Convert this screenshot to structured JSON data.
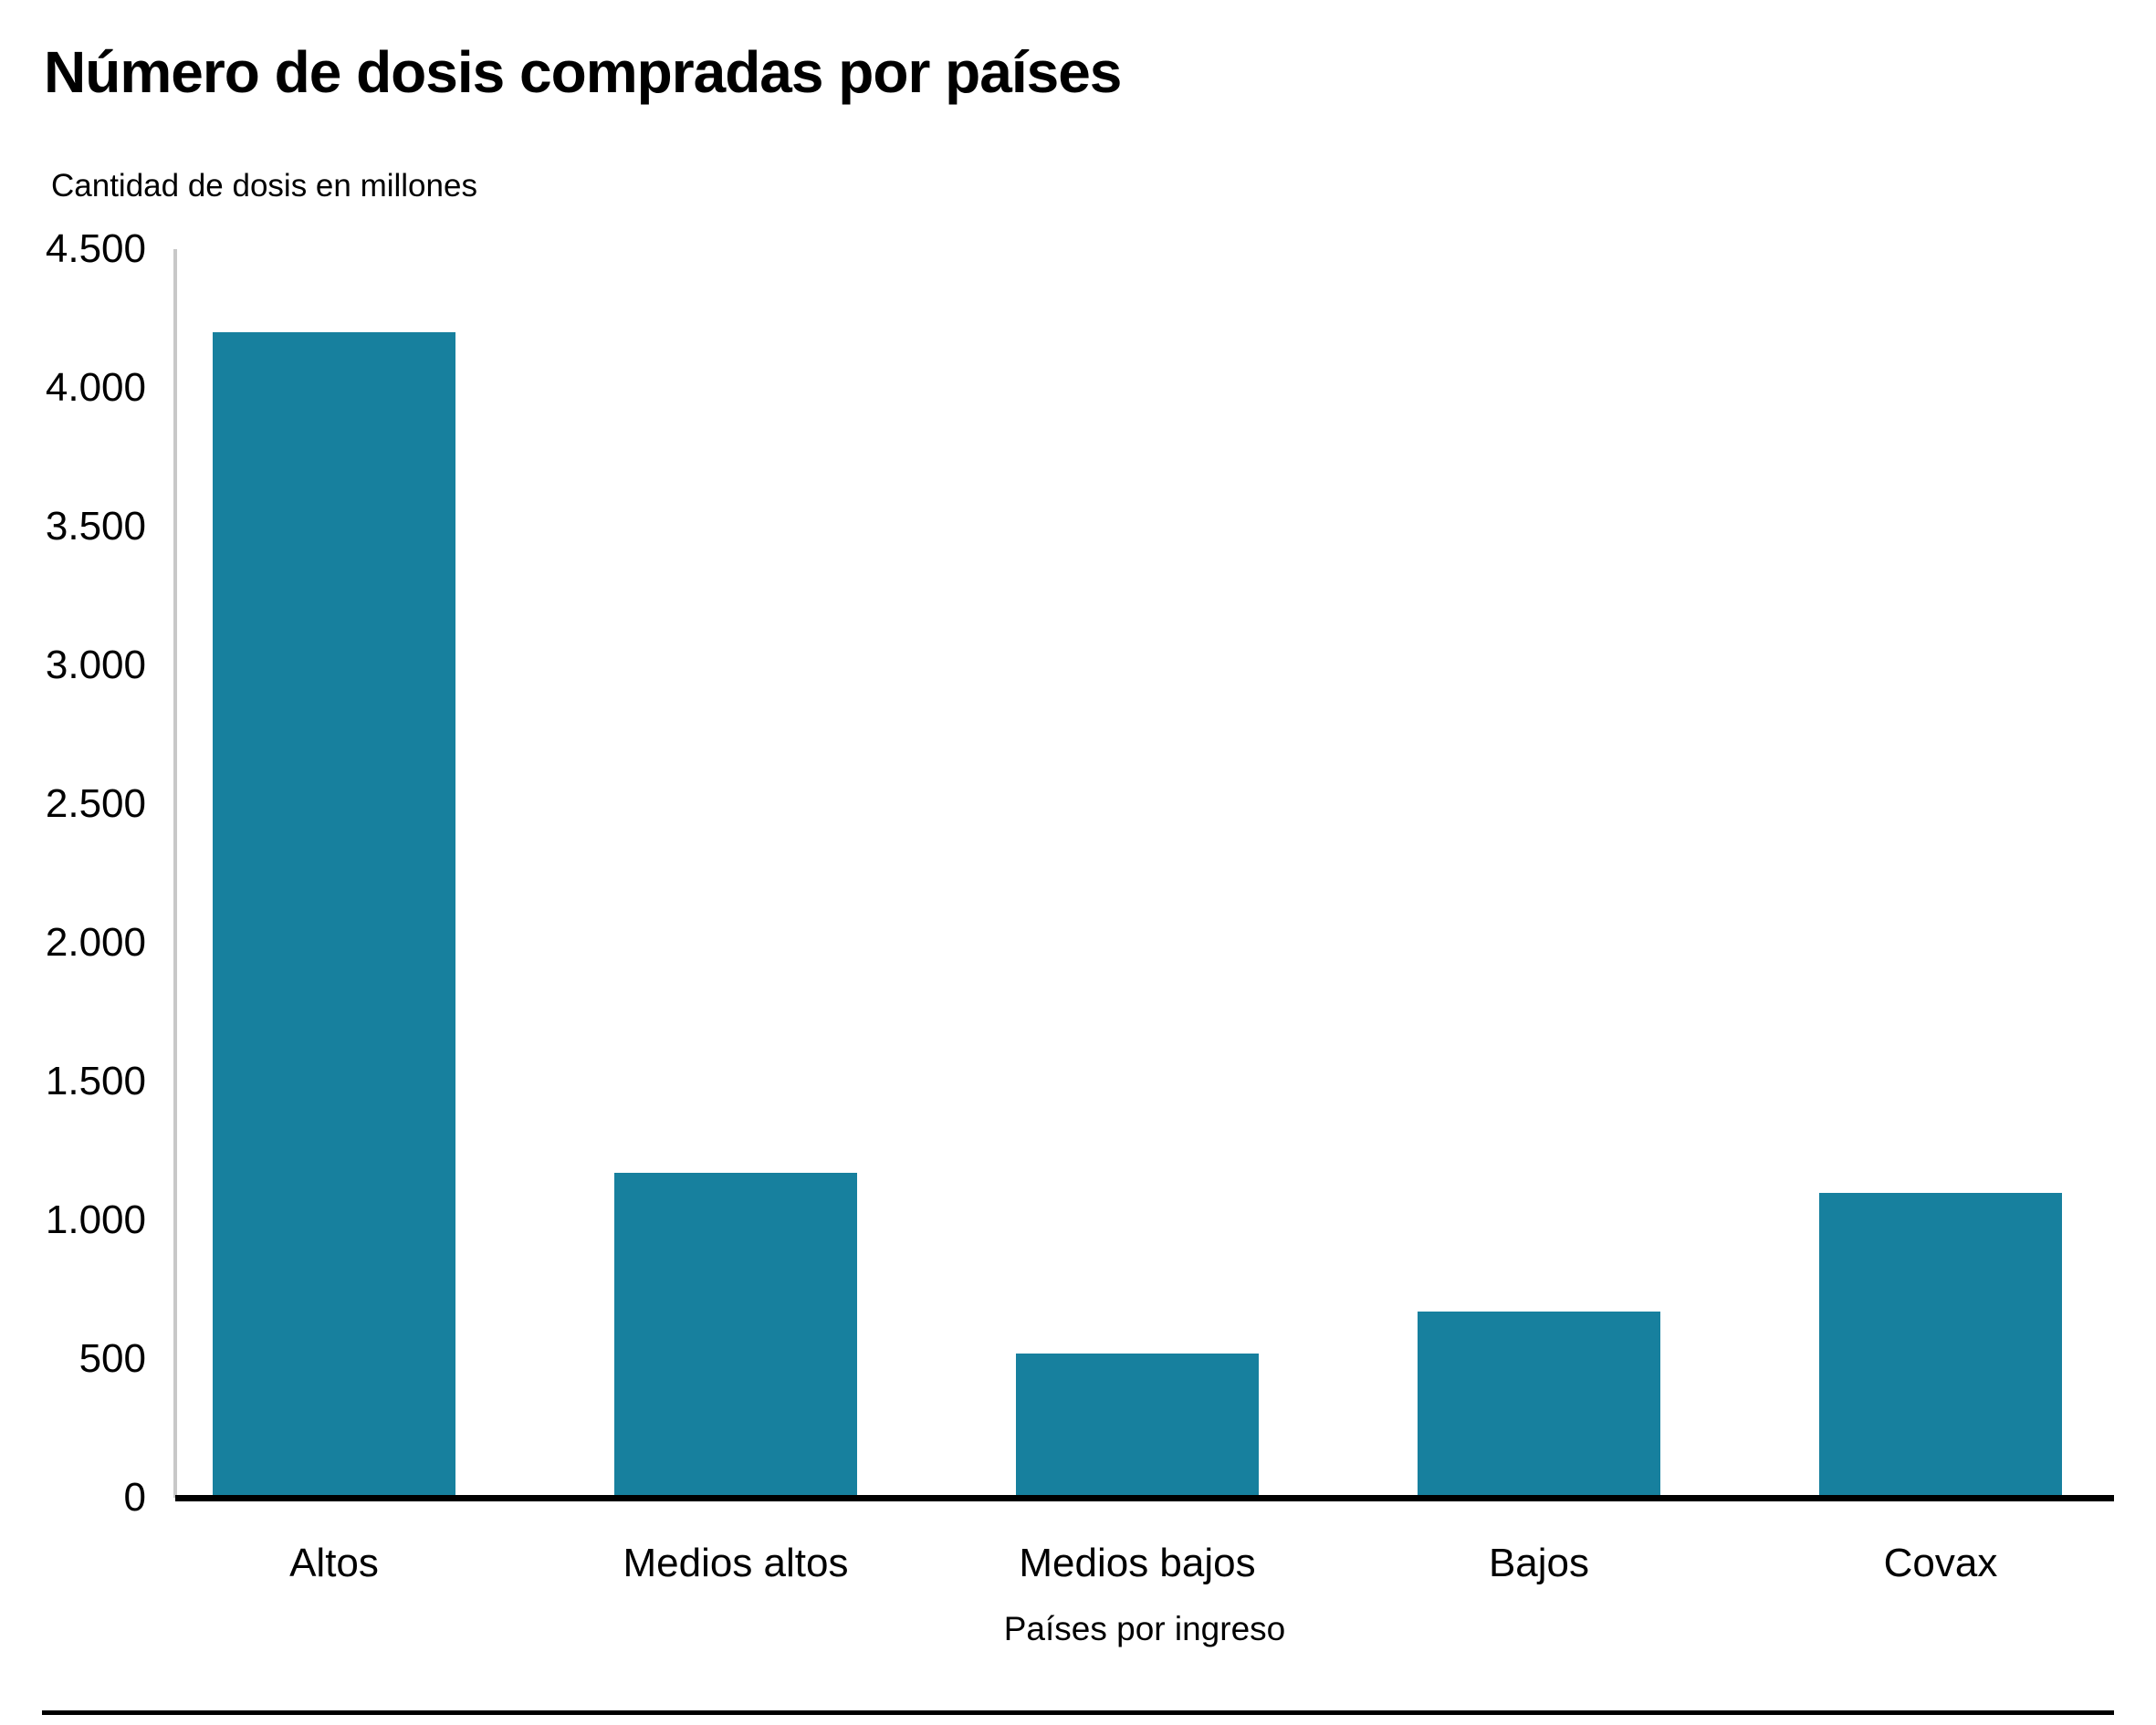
{
  "page": {
    "background": "#ffffff"
  },
  "chart_data": {
    "type": "bar",
    "title": "Número de dosis compradas por países",
    "ylabel": "Cantidad de dosis en millones",
    "xlabel": "Países por ingreso",
    "categories": [
      "Altos",
      "Medios altos",
      "Medios bajos",
      "Bajos",
      "Covax"
    ],
    "values": [
      4200,
      1170,
      520,
      670,
      1100
    ],
    "ylim": [
      0,
      4500
    ],
    "ytick_step": 500,
    "ytick_labels": [
      "0",
      "500",
      "1.000",
      "1.500",
      "2.000",
      "2.500",
      "3.000",
      "3.500",
      "4.000",
      "4.500"
    ],
    "grid": false,
    "legend": "none",
    "bar_color": "#17809e",
    "y_axis_line_color": "#c8c8c8",
    "baseline_color": "#000000",
    "divider_color": "#000000",
    "text_color": "#000000"
  }
}
